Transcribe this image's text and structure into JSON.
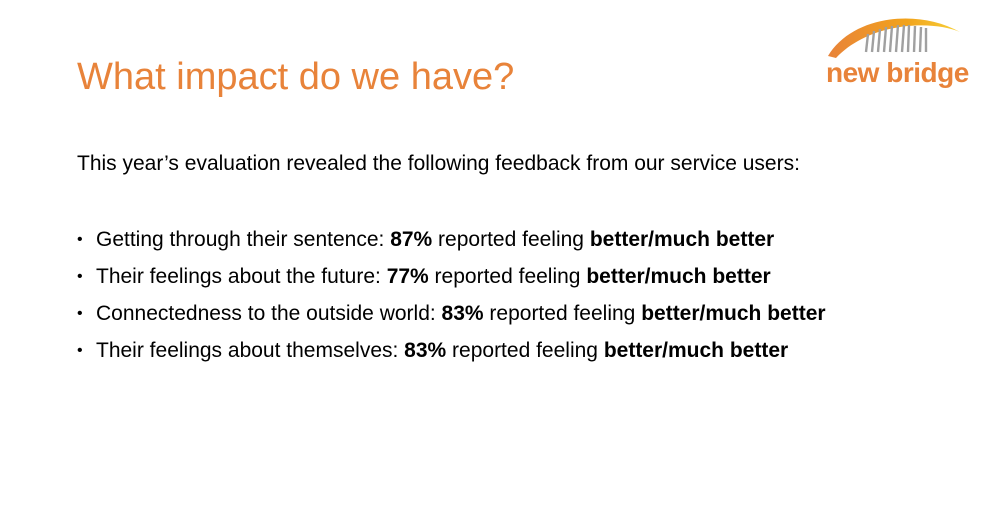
{
  "slide": {
    "title": "What impact do we have?",
    "intro": "This year’s evaluation revealed the following feedback from our service users:",
    "logo_text": "new bridge",
    "bullet_glyph": "•",
    "items": [
      {
        "label": "Getting through their sentence: ",
        "percent": "87%",
        "middle": " reported feeling ",
        "outcome": "better/much better"
      },
      {
        "label": "Their feelings about the future: ",
        "percent": "77%",
        "middle": " reported feeling ",
        "outcome": "better/much better"
      },
      {
        "label": "Connectedness to the outside world: ",
        "percent": "83%",
        "middle": " reported feeling ",
        "outcome": "better/much better"
      },
      {
        "label": "Their feelings about themselves: ",
        "percent": "83%",
        "middle": " reported feeling ",
        "outcome": "better/much better"
      }
    ]
  },
  "colors": {
    "accent": "#E8833A",
    "logo_arc": "#F2A31B",
    "logo_stripes": "#A0A0A0"
  }
}
